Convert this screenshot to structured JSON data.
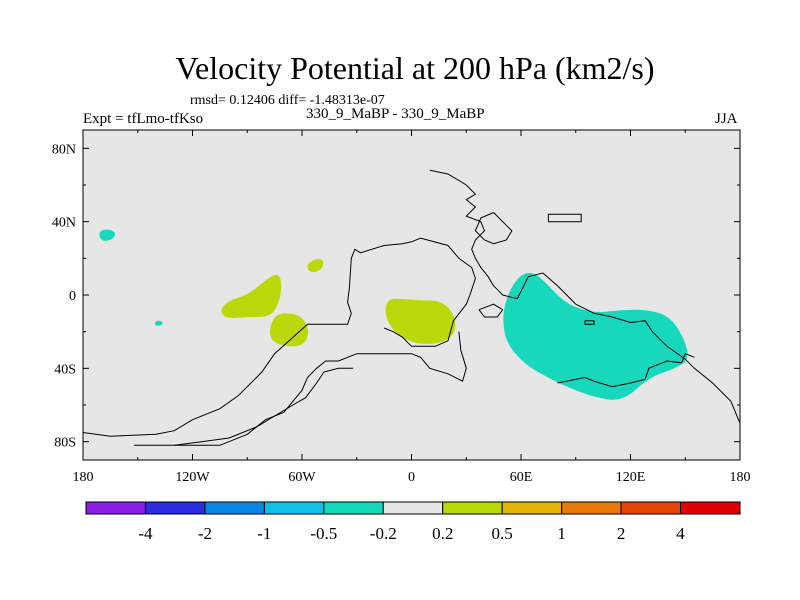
{
  "chart_data": {
    "type": "contour-map",
    "title": "Velocity Potential at 200 hPa (km2/s)",
    "subtitle_stats": "rmsd= 0.12406 diff= -1.48313e-07",
    "left_label": "Expt = tfLmo-tfKso",
    "center_label": "330_9_MaBP - 330_9_MaBP",
    "right_label": "JJA",
    "x_range": [
      -180,
      180
    ],
    "y_range": [
      -90,
      90
    ],
    "x_ticks": [
      {
        "value": -180,
        "label": "180"
      },
      {
        "value": -120,
        "label": "120W"
      },
      {
        "value": -60,
        "label": "60W"
      },
      {
        "value": 0,
        "label": "0"
      },
      {
        "value": 60,
        "label": "60E"
      },
      {
        "value": 120,
        "label": "120E"
      },
      {
        "value": 180,
        "label": "180"
      }
    ],
    "y_ticks": [
      {
        "value": 80,
        "label": "80N"
      },
      {
        "value": 40,
        "label": "40N"
      },
      {
        "value": 0,
        "label": "0"
      },
      {
        "value": -40,
        "label": "40S"
      },
      {
        "value": -80,
        "label": "80S"
      }
    ],
    "colorbar": {
      "levels": [
        "-4",
        "-2",
        "-1",
        "-0.5",
        "-0.2",
        "0.2",
        "0.5",
        "1",
        "2",
        "4"
      ],
      "colors": [
        "#8a1fe6",
        "#2c2ce0",
        "#0b86e0",
        "#11c0e8",
        "#11d9b9",
        "#e6e6e6",
        "#b9d808",
        "#e3b508",
        "#e57a08",
        "#e64508",
        "#e00000"
      ]
    },
    "colors": {
      "background": "#e6e6e6",
      "positive": "#bcd80a",
      "negative": "#17d8bc",
      "coastline": "#000000"
    },
    "regions": [
      {
        "sign": "negative",
        "name": "asia-pacific-negative",
        "points": [
          [
            50,
            -15
          ],
          [
            51,
            -5
          ],
          [
            55,
            5
          ],
          [
            61,
            12
          ],
          [
            68,
            12
          ],
          [
            75,
            5
          ],
          [
            85,
            -5
          ],
          [
            100,
            -10
          ],
          [
            115,
            -8
          ],
          [
            130,
            -8
          ],
          [
            142,
            -12
          ],
          [
            150,
            -25
          ],
          [
            152,
            -35
          ],
          [
            145,
            -40
          ],
          [
            130,
            -45
          ],
          [
            116,
            -58
          ],
          [
            100,
            -56
          ],
          [
            80,
            -48
          ],
          [
            62,
            -38
          ],
          [
            52,
            -26
          ]
        ]
      },
      {
        "sign": "negative",
        "name": "north-pacific-negative",
        "points": [
          [
            -171,
            35
          ],
          [
            -166,
            36
          ],
          [
            -162,
            34
          ],
          [
            -163,
            31
          ],
          [
            -168,
            29
          ],
          [
            -171,
            31
          ]
        ]
      },
      {
        "sign": "negative",
        "name": "south-pacific-negative",
        "points": [
          [
            -140,
            -14
          ],
          [
            -137,
            -14
          ],
          [
            -136,
            -16
          ],
          [
            -139,
            -17
          ],
          [
            -141,
            -16
          ]
        ]
      },
      {
        "sign": "positive",
        "name": "africa-positive",
        "points": [
          [
            -15,
            -10
          ],
          [
            -13,
            -2
          ],
          [
            -5,
            -2
          ],
          [
            5,
            -3
          ],
          [
            15,
            -3
          ],
          [
            22,
            -8
          ],
          [
            25,
            -18
          ],
          [
            20,
            -25
          ],
          [
            10,
            -27
          ],
          [
            0,
            -26
          ],
          [
            -10,
            -20
          ]
        ]
      },
      {
        "sign": "positive",
        "name": "atlantic-positive-upper",
        "points": [
          [
            -105,
            -8
          ],
          [
            -100,
            -3
          ],
          [
            -90,
            0
          ],
          [
            -80,
            8
          ],
          [
            -74,
            12
          ],
          [
            -71,
            8
          ],
          [
            -72,
            -3
          ],
          [
            -77,
            -12
          ],
          [
            -90,
            -12
          ],
          [
            -102,
            -13
          ]
        ]
      },
      {
        "sign": "positive",
        "name": "atlantic-positive-lower",
        "points": [
          [
            -78,
            -18
          ],
          [
            -74,
            -10
          ],
          [
            -64,
            -10
          ],
          [
            -58,
            -14
          ],
          [
            -56,
            -22
          ],
          [
            -60,
            -28
          ],
          [
            -70,
            -28
          ],
          [
            -77,
            -25
          ]
        ]
      },
      {
        "sign": "positive",
        "name": "north-atlantic-positive",
        "points": [
          [
            -57,
            17
          ],
          [
            -52,
            20
          ],
          [
            -48,
            19
          ],
          [
            -49,
            14
          ],
          [
            -54,
            12
          ],
          [
            -57,
            14
          ]
        ]
      }
    ],
    "coastlines": [
      {
        "name": "coast-north-america",
        "points": [
          [
            -180,
            -75
          ],
          [
            -165,
            -77
          ],
          [
            -140,
            -76
          ],
          [
            -130,
            -74
          ],
          [
            -120,
            -68
          ],
          [
            -105,
            -62
          ],
          [
            -95,
            -55
          ],
          [
            -82,
            -42
          ],
          [
            -75,
            -32
          ],
          [
            -57,
            -16
          ],
          [
            -35,
            -16
          ],
          [
            -33,
            -10
          ],
          [
            -35,
            -4
          ],
          [
            -34,
            4
          ],
          [
            -33,
            20
          ],
          [
            -31,
            25
          ],
          [
            -28,
            23
          ],
          [
            -15,
            27
          ],
          [
            -5,
            28
          ],
          [
            0,
            29
          ],
          [
            5,
            31
          ],
          [
            20,
            27
          ],
          [
            26,
            20
          ],
          [
            33,
            15
          ],
          [
            35,
            9
          ],
          [
            32,
            0
          ],
          [
            30,
            -5
          ],
          [
            23,
            -14
          ],
          [
            20,
            -25
          ],
          [
            13,
            -28
          ],
          [
            10,
            -28
          ],
          [
            5,
            -28
          ],
          [
            0,
            -28
          ],
          [
            -5,
            -23
          ],
          [
            -10,
            -20
          ],
          [
            -15,
            -18
          ]
        ]
      },
      {
        "name": "coast-south-america",
        "points": [
          [
            -152,
            -82
          ],
          [
            -130,
            -82
          ],
          [
            -115,
            -82
          ],
          [
            -105,
            -82
          ],
          [
            -90,
            -76
          ],
          [
            -80,
            -68
          ],
          [
            -70,
            -64
          ],
          [
            -60,
            -52
          ],
          [
            -57,
            -45
          ],
          [
            -52,
            -40
          ],
          [
            -47,
            -36
          ],
          [
            -40,
            -36
          ],
          [
            -30,
            -32
          ],
          [
            -20,
            -32
          ],
          [
            -10,
            -32
          ],
          [
            0,
            -32
          ],
          [
            5,
            -34
          ],
          [
            10,
            -40
          ],
          [
            20,
            -43
          ],
          [
            28,
            -47
          ],
          [
            30,
            -40
          ],
          [
            27,
            -30
          ],
          [
            26,
            -20
          ]
        ]
      },
      {
        "name": "coast-antarctica-strip",
        "points": [
          [
            -130,
            -82
          ],
          [
            -115,
            -80
          ],
          [
            -100,
            -78
          ],
          [
            -85,
            -72
          ],
          [
            -75,
            -66
          ],
          [
            -65,
            -60
          ],
          [
            -58,
            -56
          ],
          [
            -52,
            -48
          ],
          [
            -48,
            -42
          ],
          [
            -40,
            -40
          ],
          [
            -32,
            -40
          ]
        ]
      },
      {
        "name": "coast-asia-north",
        "points": [
          [
            10,
            68
          ],
          [
            20,
            66
          ],
          [
            30,
            60
          ],
          [
            35,
            55
          ],
          [
            30,
            52
          ],
          [
            35,
            48
          ],
          [
            30,
            43
          ],
          [
            38,
            40
          ],
          [
            40,
            35
          ],
          [
            35,
            30
          ],
          [
            33,
            25
          ],
          [
            35,
            20
          ],
          [
            38,
            15
          ],
          [
            42,
            10
          ],
          [
            45,
            5
          ],
          [
            48,
            2
          ],
          [
            50,
            0
          ],
          [
            58,
            -2
          ],
          [
            64,
            10
          ],
          [
            72,
            12
          ],
          [
            80,
            5
          ],
          [
            90,
            -5
          ],
          [
            100,
            -10
          ],
          [
            110,
            -12
          ],
          [
            120,
            -15
          ],
          [
            128,
            -14
          ],
          [
            132,
            -20
          ],
          [
            140,
            -28
          ],
          [
            150,
            -35
          ],
          [
            155,
            -40
          ],
          [
            165,
            -48
          ],
          [
            175,
            -58
          ],
          [
            180,
            -70
          ]
        ]
      },
      {
        "name": "coast-asia-inner",
        "points": [
          [
            45,
            45
          ],
          [
            50,
            40
          ],
          [
            55,
            35
          ],
          [
            52,
            30
          ],
          [
            45,
            28
          ],
          [
            40,
            30
          ],
          [
            35,
            35
          ],
          [
            38,
            42
          ],
          [
            45,
            45
          ]
        ]
      },
      {
        "name": "coast-australia",
        "points": [
          [
            80,
            -48
          ],
          [
            95,
            -45
          ],
          [
            100,
            -47
          ],
          [
            110,
            -50
          ],
          [
            120,
            -48
          ],
          [
            128,
            -46
          ],
          [
            130,
            -40
          ],
          [
            135,
            -38
          ],
          [
            140,
            -36
          ],
          [
            148,
            -37
          ],
          [
            150,
            -32
          ],
          [
            155,
            -34
          ]
        ]
      },
      {
        "name": "coast-japan",
        "points": [
          [
            75,
            40
          ],
          [
            75,
            44
          ],
          [
            93,
            44
          ],
          [
            93,
            40
          ],
          [
            75,
            40
          ]
        ]
      },
      {
        "name": "coast-islands",
        "points": [
          [
            37,
            -8
          ],
          [
            45,
            -5
          ],
          [
            50,
            -8
          ],
          [
            47,
            -12
          ],
          [
            40,
            -12
          ],
          [
            37,
            -8
          ]
        ]
      },
      {
        "name": "coast-sea-small",
        "points": [
          [
            95,
            -14
          ],
          [
            100,
            -14
          ],
          [
            100,
            -16
          ],
          [
            95,
            -16
          ],
          [
            95,
            -14
          ]
        ]
      }
    ]
  }
}
